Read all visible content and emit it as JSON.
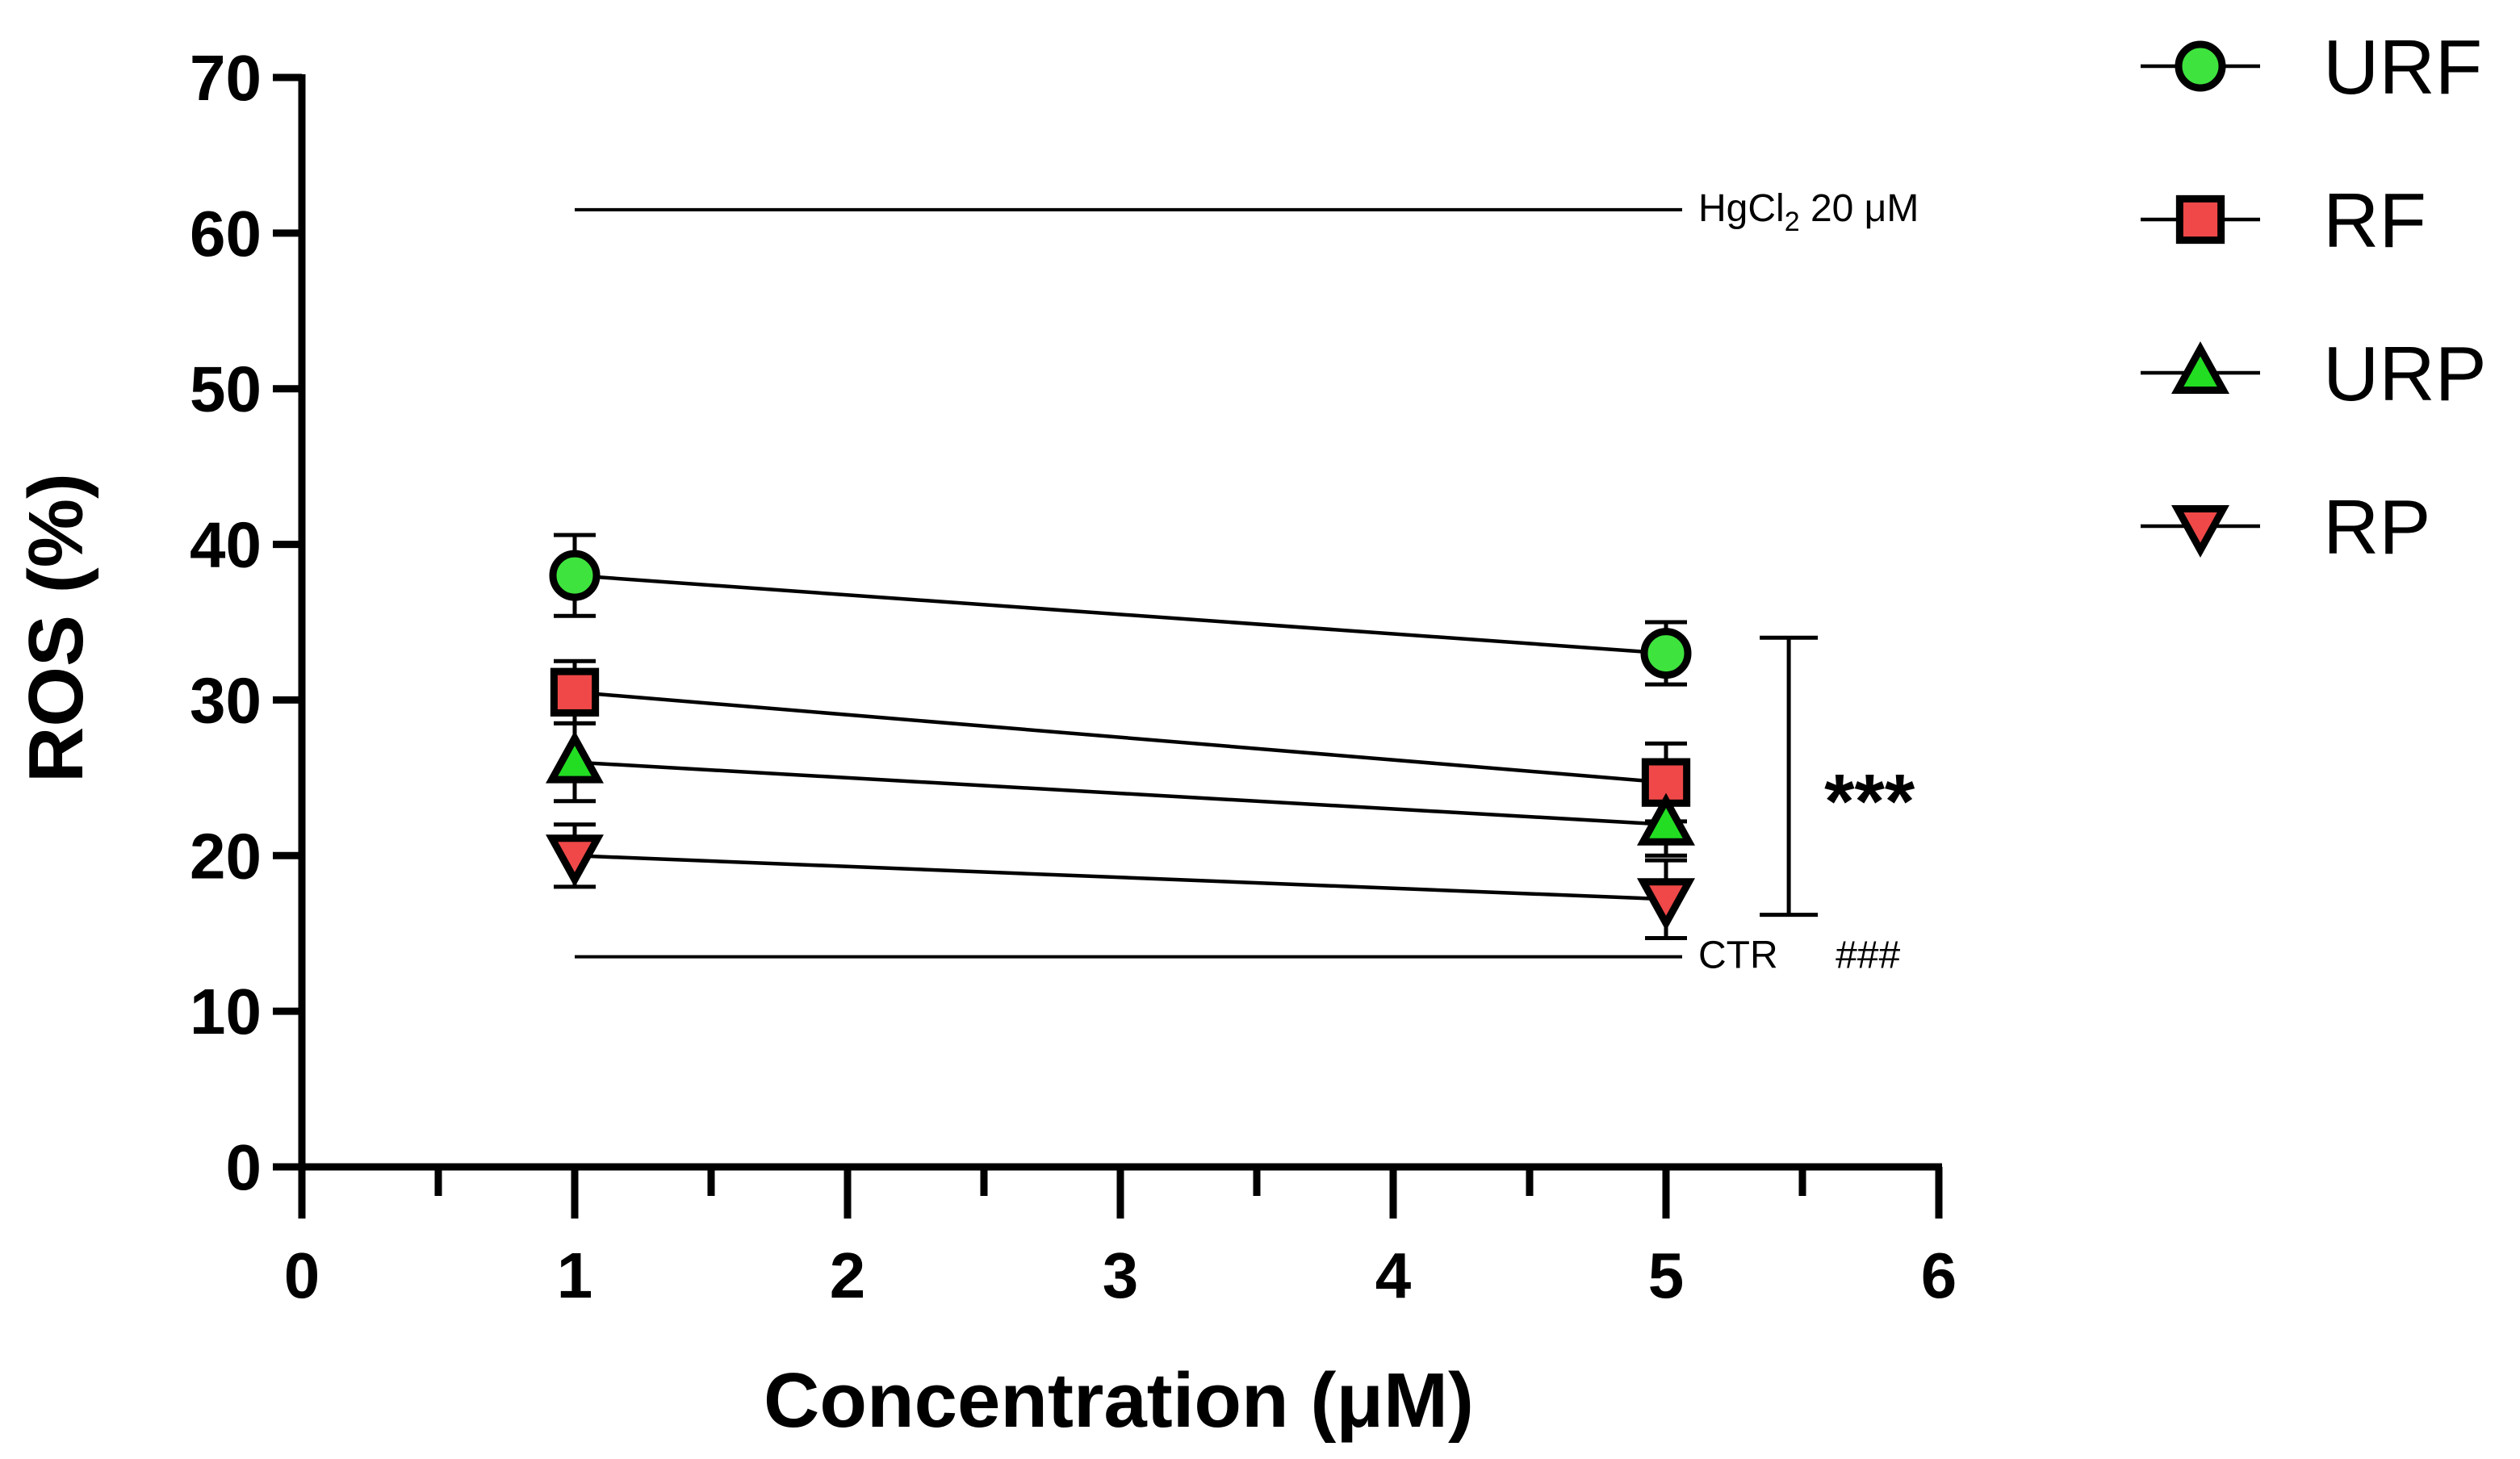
{
  "chart_data": {
    "type": "line",
    "title": "",
    "xlabel": "Concentration (μM)",
    "ylabel": "ROS (%)",
    "xlim": [
      0,
      6
    ],
    "ylim": [
      0,
      70
    ],
    "xticks": [
      "0",
      "1",
      "2",
      "3",
      "4",
      "5",
      "6"
    ],
    "yticks": [
      "0",
      "10",
      "20",
      "30",
      "40",
      "50",
      "60",
      "70"
    ],
    "x": [
      1,
      5
    ],
    "series": [
      {
        "name": "URF",
        "marker": "circle",
        "color": "#3ee33e",
        "values": [
          38,
          33
        ],
        "errors": [
          2.6,
          2.0
        ]
      },
      {
        "name": "RF",
        "marker": "square",
        "color": "#f04848",
        "values": [
          30.5,
          24.7
        ],
        "errors": [
          2.0,
          2.5
        ]
      },
      {
        "name": "URP",
        "marker": "triangle-up",
        "color": "#22dd22",
        "values": [
          26,
          22
        ],
        "errors": [
          2.5,
          2.0
        ]
      },
      {
        "name": "RP",
        "marker": "triangle-down",
        "color": "#f04848",
        "values": [
          20,
          17.2
        ],
        "errors": [
          2.0,
          2.5
        ]
      }
    ],
    "reference_lines": [
      {
        "label_main": "HgCl",
        "label_sub": "2",
        "label_rest": " 20 μM",
        "y": 61.5,
        "x_range": [
          1,
          5
        ]
      },
      {
        "label_main": "CTR",
        "label_sub": "",
        "label_rest": "",
        "y": 13.5,
        "x_range": [
          1,
          5
        ]
      }
    ],
    "significance": {
      "bracket_y": [
        16.2,
        34
      ],
      "x": 5.45,
      "stars": "***",
      "hash": "###"
    },
    "legend_position": "top-right",
    "grid": false
  }
}
